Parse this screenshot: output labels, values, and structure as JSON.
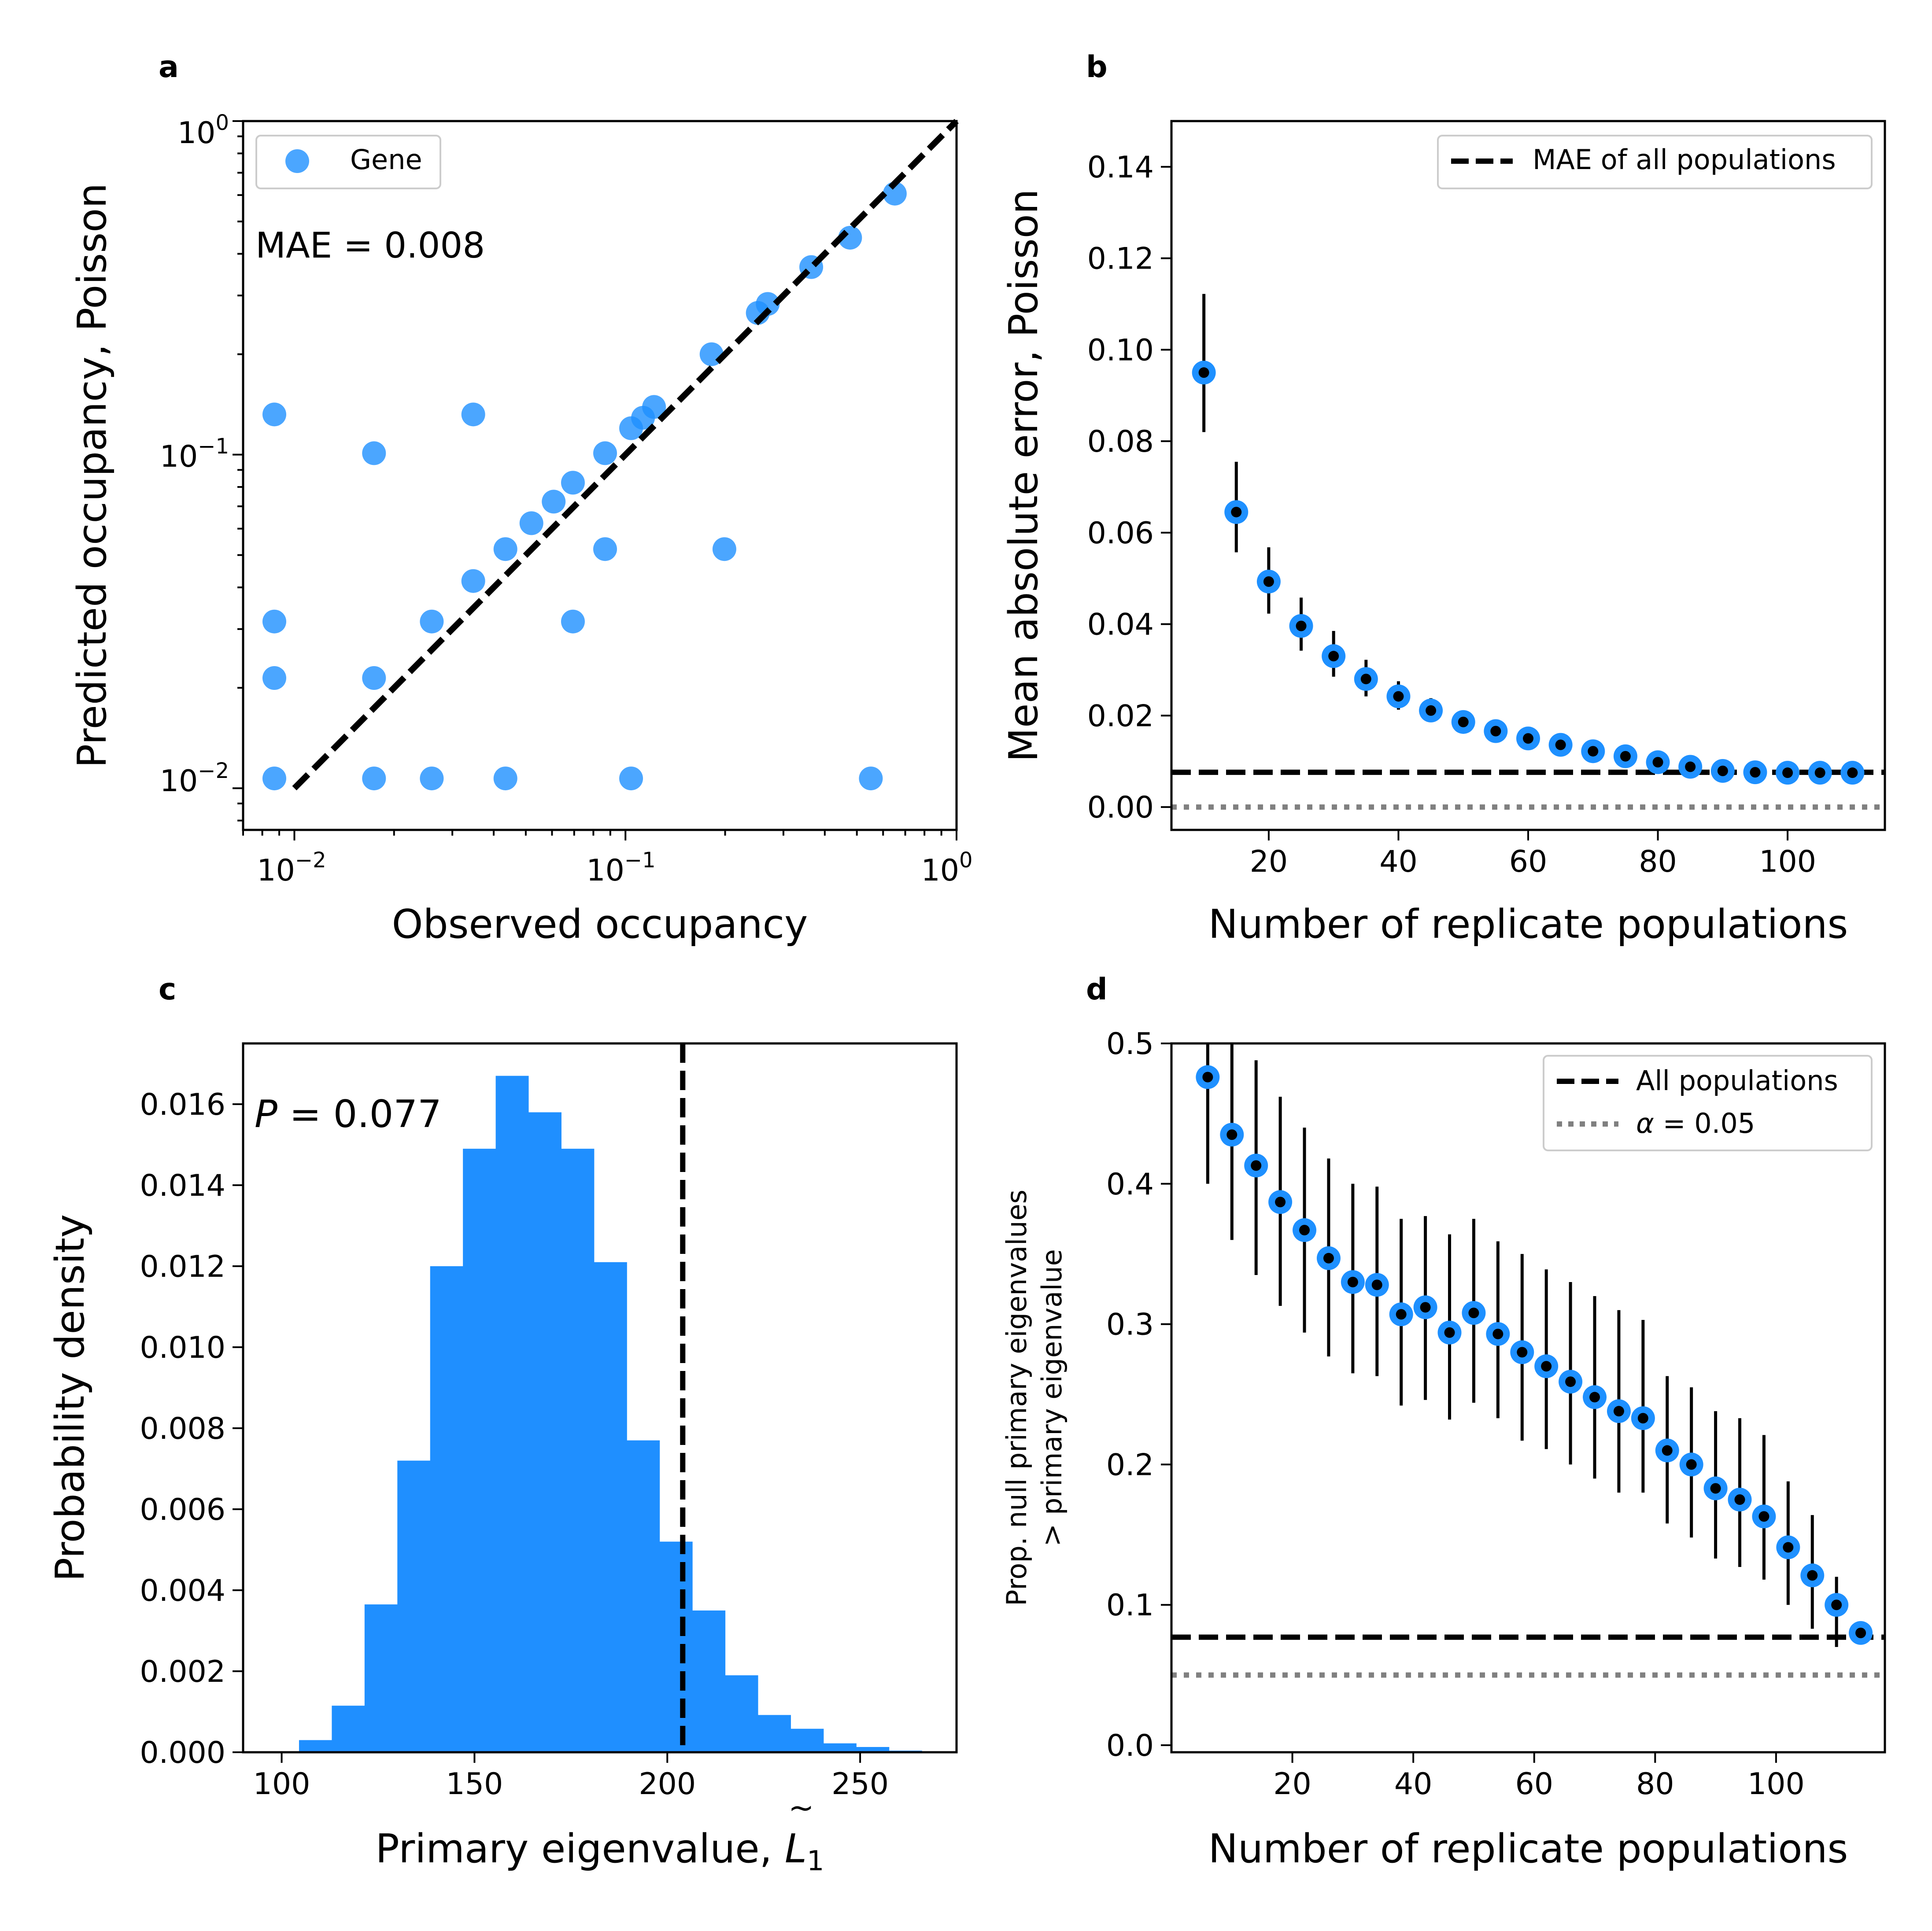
{
  "colors": {
    "point": "#1e90ff",
    "bar": "#1f8fff",
    "reference_line": "#000000",
    "alpha_line": "#808080",
    "error_bar": "#000000"
  },
  "chart_data": [
    {
      "panel": "a",
      "type": "scatter",
      "xlabel": "Observed occupancy",
      "ylabel": "Predicted occupancy, Poisson",
      "xscale": "log",
      "yscale": "log",
      "xlim": [
        0.007,
        1.0
      ],
      "ylim": [
        0.0075,
        1.0
      ],
      "xticks": [
        "10^-2",
        "10^-1",
        "10^0"
      ],
      "yticks": [
        "10^-2",
        "10^-1",
        "10^0"
      ],
      "legend": {
        "position": "top-left",
        "entries": [
          "Gene"
        ]
      },
      "annotation": "MAE = 0.008",
      "reference_line": {
        "style": "dashed",
        "points": [
          [
            0.01,
            0.01
          ],
          [
            1.0,
            1.0
          ]
        ]
      },
      "series": [
        {
          "name": "Gene",
          "points": [
            [
              0.0087,
              0.0107
            ],
            [
              0.0087,
              0.0214
            ],
            [
              0.0087,
              0.0316
            ],
            [
              0.0087,
              0.132
            ],
            [
              0.0174,
              0.0107
            ],
            [
              0.0174,
              0.0214
            ],
            [
              0.0174,
              0.101
            ],
            [
              0.026,
              0.0107
            ],
            [
              0.026,
              0.0316
            ],
            [
              0.0347,
              0.0418
            ],
            [
              0.0347,
              0.132
            ],
            [
              0.0434,
              0.0107
            ],
            [
              0.0434,
              0.0521
            ],
            [
              0.052,
              0.0623
            ],
            [
              0.0607,
              0.0723
            ],
            [
              0.0694,
              0.0316
            ],
            [
              0.0694,
              0.0824
            ],
            [
              0.0868,
              0.0521
            ],
            [
              0.0868,
              0.101
            ],
            [
              0.104,
              0.0107
            ],
            [
              0.104,
              0.12
            ],
            [
              0.113,
              0.129
            ],
            [
              0.122,
              0.139
            ],
            [
              0.182,
              0.2
            ],
            [
              0.199,
              0.0521
            ],
            [
              0.251,
              0.266
            ],
            [
              0.269,
              0.283
            ],
            [
              0.364,
              0.365
            ],
            [
              0.477,
              0.447
            ],
            [
              0.551,
              0.0107
            ],
            [
              0.651,
              0.606
            ]
          ]
        }
      ]
    },
    {
      "panel": "b",
      "type": "scatter",
      "xlabel": "Number of replicate populations",
      "ylabel": "Mean absolute error, Poisson",
      "xlim": [
        5,
        115
      ],
      "ylim": [
        -0.005,
        0.15
      ],
      "xticks": [
        20,
        40,
        60,
        80,
        100
      ],
      "yticks": [
        "0.00",
        "0.02",
        "0.04",
        "0.06",
        "0.08",
        "0.10",
        "0.12",
        "0.14"
      ],
      "legend": {
        "position": "top-right",
        "entries": [
          "MAE of all populations"
        ]
      },
      "hlines": [
        {
          "label": "MAE of all populations",
          "y": 0.0076,
          "style": "dashed",
          "color": "#000000"
        },
        {
          "label": "",
          "y": 0.0,
          "style": "dotted",
          "color": "#808080"
        }
      ],
      "x": [
        10,
        15,
        20,
        25,
        30,
        35,
        40,
        45,
        50,
        55,
        60,
        65,
        70,
        75,
        80,
        85,
        90,
        95,
        100,
        105,
        110
      ],
      "y": [
        0.095,
        0.0645,
        0.0493,
        0.0396,
        0.033,
        0.028,
        0.0242,
        0.0211,
        0.0186,
        0.0166,
        0.015,
        0.0136,
        0.0122,
        0.0111,
        0.0098,
        0.0088,
        0.0079,
        0.0076,
        0.0075,
        0.0075,
        0.0075
      ],
      "err_low": [
        0.082,
        0.0557,
        0.0423,
        0.0342,
        0.0285,
        0.0242,
        0.0213,
        0.0188,
        0.0165,
        0.0148,
        0.0134,
        0.0122,
        0.011,
        0.0102,
        0.009,
        0.0082,
        0.0075,
        0.0072,
        0.0072,
        0.0073,
        0.0073
      ],
      "err_high": [
        0.1122,
        0.0755,
        0.0568,
        0.0458,
        0.0385,
        0.0322,
        0.0275,
        0.0238,
        0.0208,
        0.0184,
        0.0165,
        0.0149,
        0.0133,
        0.012,
        0.0106,
        0.0094,
        0.0083,
        0.0079,
        0.0078,
        0.0077,
        0.0077
      ]
    },
    {
      "panel": "c",
      "type": "bar",
      "subtype": "histogram",
      "xlabel": "Primary eigenvalue, L̃₁",
      "ylabel": "Probability density",
      "xlim": [
        90,
        275
      ],
      "ylim": [
        0,
        0.0175
      ],
      "xticks": [
        100,
        150,
        200,
        250
      ],
      "yticks": [
        "0.000",
        "0.002",
        "0.004",
        "0.006",
        "0.008",
        "0.010",
        "0.012",
        "0.014",
        "0.016"
      ],
      "annotation": "P = 0.077",
      "vline": {
        "x": 204,
        "style": "dashed",
        "color": "#000000"
      },
      "bin_edges": [
        96,
        104.5,
        113,
        121.5,
        130,
        138.5,
        147,
        155.5,
        164,
        172.5,
        181,
        189.5,
        198,
        206.5,
        215,
        223.5,
        232,
        240.5,
        249,
        257.5,
        266
      ],
      "density": [
        2e-05,
        0.0003,
        0.00115,
        0.00365,
        0.0072,
        0.012,
        0.0149,
        0.0167,
        0.0158,
        0.0149,
        0.0121,
        0.0077,
        0.0052,
        0.0035,
        0.0019,
        0.00092,
        0.00058,
        0.00022,
        0.00013,
        4e-05
      ]
    },
    {
      "panel": "d",
      "type": "scatter",
      "xlabel": "Number of replicate populations",
      "ylabel": [
        "Prop. null primary eigenvalues",
        "> primary eigenvalue"
      ],
      "xlim": [
        0,
        118
      ],
      "ylim": [
        -0.005,
        0.5
      ],
      "xticks": [
        20,
        40,
        60,
        80,
        100
      ],
      "yticks": [
        "0.0",
        "0.1",
        "0.2",
        "0.3",
        "0.4",
        "0.5"
      ],
      "legend": {
        "position": "top-right",
        "entries": [
          "All populations",
          "α = 0.05"
        ]
      },
      "hlines": [
        {
          "label": "All populations",
          "y": 0.077,
          "style": "dashed",
          "color": "#000000"
        },
        {
          "label": "α = 0.05",
          "y": 0.05,
          "style": "dotted",
          "color": "#808080"
        }
      ],
      "x": [
        6,
        10,
        14,
        18,
        22,
        26,
        30,
        34,
        38,
        42,
        46,
        50,
        54,
        58,
        62,
        66,
        70,
        74,
        78,
        82,
        86,
        90,
        94,
        98,
        102,
        106,
        110,
        114
      ],
      "y": [
        0.476,
        0.435,
        0.413,
        0.387,
        0.367,
        0.347,
        0.33,
        0.328,
        0.307,
        0.312,
        0.294,
        0.308,
        0.293,
        0.28,
        0.27,
        0.259,
        0.248,
        0.238,
        0.233,
        0.21,
        0.2,
        0.183,
        0.175,
        0.163,
        0.141,
        0.121,
        0.1,
        0.08
      ],
      "err_low": [
        0.4,
        0.36,
        0.335,
        0.313,
        0.294,
        0.277,
        0.265,
        0.263,
        0.242,
        0.246,
        0.232,
        0.244,
        0.233,
        0.217,
        0.211,
        0.2,
        0.19,
        0.18,
        0.18,
        0.158,
        0.148,
        0.133,
        0.127,
        0.118,
        0.1,
        0.083,
        0.07,
        0.077
      ],
      "err_high": [
        0.54,
        0.51,
        0.488,
        0.462,
        0.44,
        0.418,
        0.4,
        0.398,
        0.375,
        0.377,
        0.364,
        0.375,
        0.359,
        0.35,
        0.339,
        0.33,
        0.32,
        0.31,
        0.303,
        0.263,
        0.255,
        0.238,
        0.233,
        0.221,
        0.188,
        0.164,
        0.12,
        0.084
      ]
    }
  ],
  "panels": {
    "a": {
      "letter": "a",
      "xlabel": "Observed occupancy",
      "ylabel": "Predicted occupancy, Poisson",
      "annotation": "MAE = 0.008",
      "legend_label": "Gene",
      "tick_base": "10",
      "tick_exps": [
        "−2",
        "−1",
        "0"
      ]
    },
    "b": {
      "letter": "b",
      "xlabel": "Number of replicate populations",
      "ylabel": "Mean absolute error, Poisson",
      "legend_label": "MAE of all populations",
      "xticks": [
        "20",
        "40",
        "60",
        "80",
        "100"
      ],
      "yticks": [
        "0.00",
        "0.02",
        "0.04",
        "0.06",
        "0.08",
        "0.10",
        "0.12",
        "0.14"
      ]
    },
    "c": {
      "letter": "c",
      "xlabel": "Primary eigenvalue, ",
      "xlabel_symbol": "L",
      "xlabel_tilde": "~",
      "xlabel_sub": "1",
      "ylabel": "Probability density",
      "annotation_p": "P",
      "annotation_rest": " = 0.077",
      "xticks": [
        "100",
        "150",
        "200",
        "250"
      ],
      "yticks": [
        "0.000",
        "0.002",
        "0.004",
        "0.006",
        "0.008",
        "0.010",
        "0.012",
        "0.014",
        "0.016"
      ]
    },
    "d": {
      "letter": "d",
      "xlabel": "Number of replicate populations",
      "ylabel_line1": "Prop. null primary eigenvalues",
      "ylabel_line2": "> primary eigenvalue",
      "legend_label_1": "All populations",
      "legend_alpha": "α",
      "legend_rest": " = 0.05",
      "xticks": [
        "20",
        "40",
        "60",
        "80",
        "100"
      ],
      "yticks": [
        "0.0",
        "0.1",
        "0.2",
        "0.3",
        "0.4",
        "0.5"
      ]
    }
  }
}
